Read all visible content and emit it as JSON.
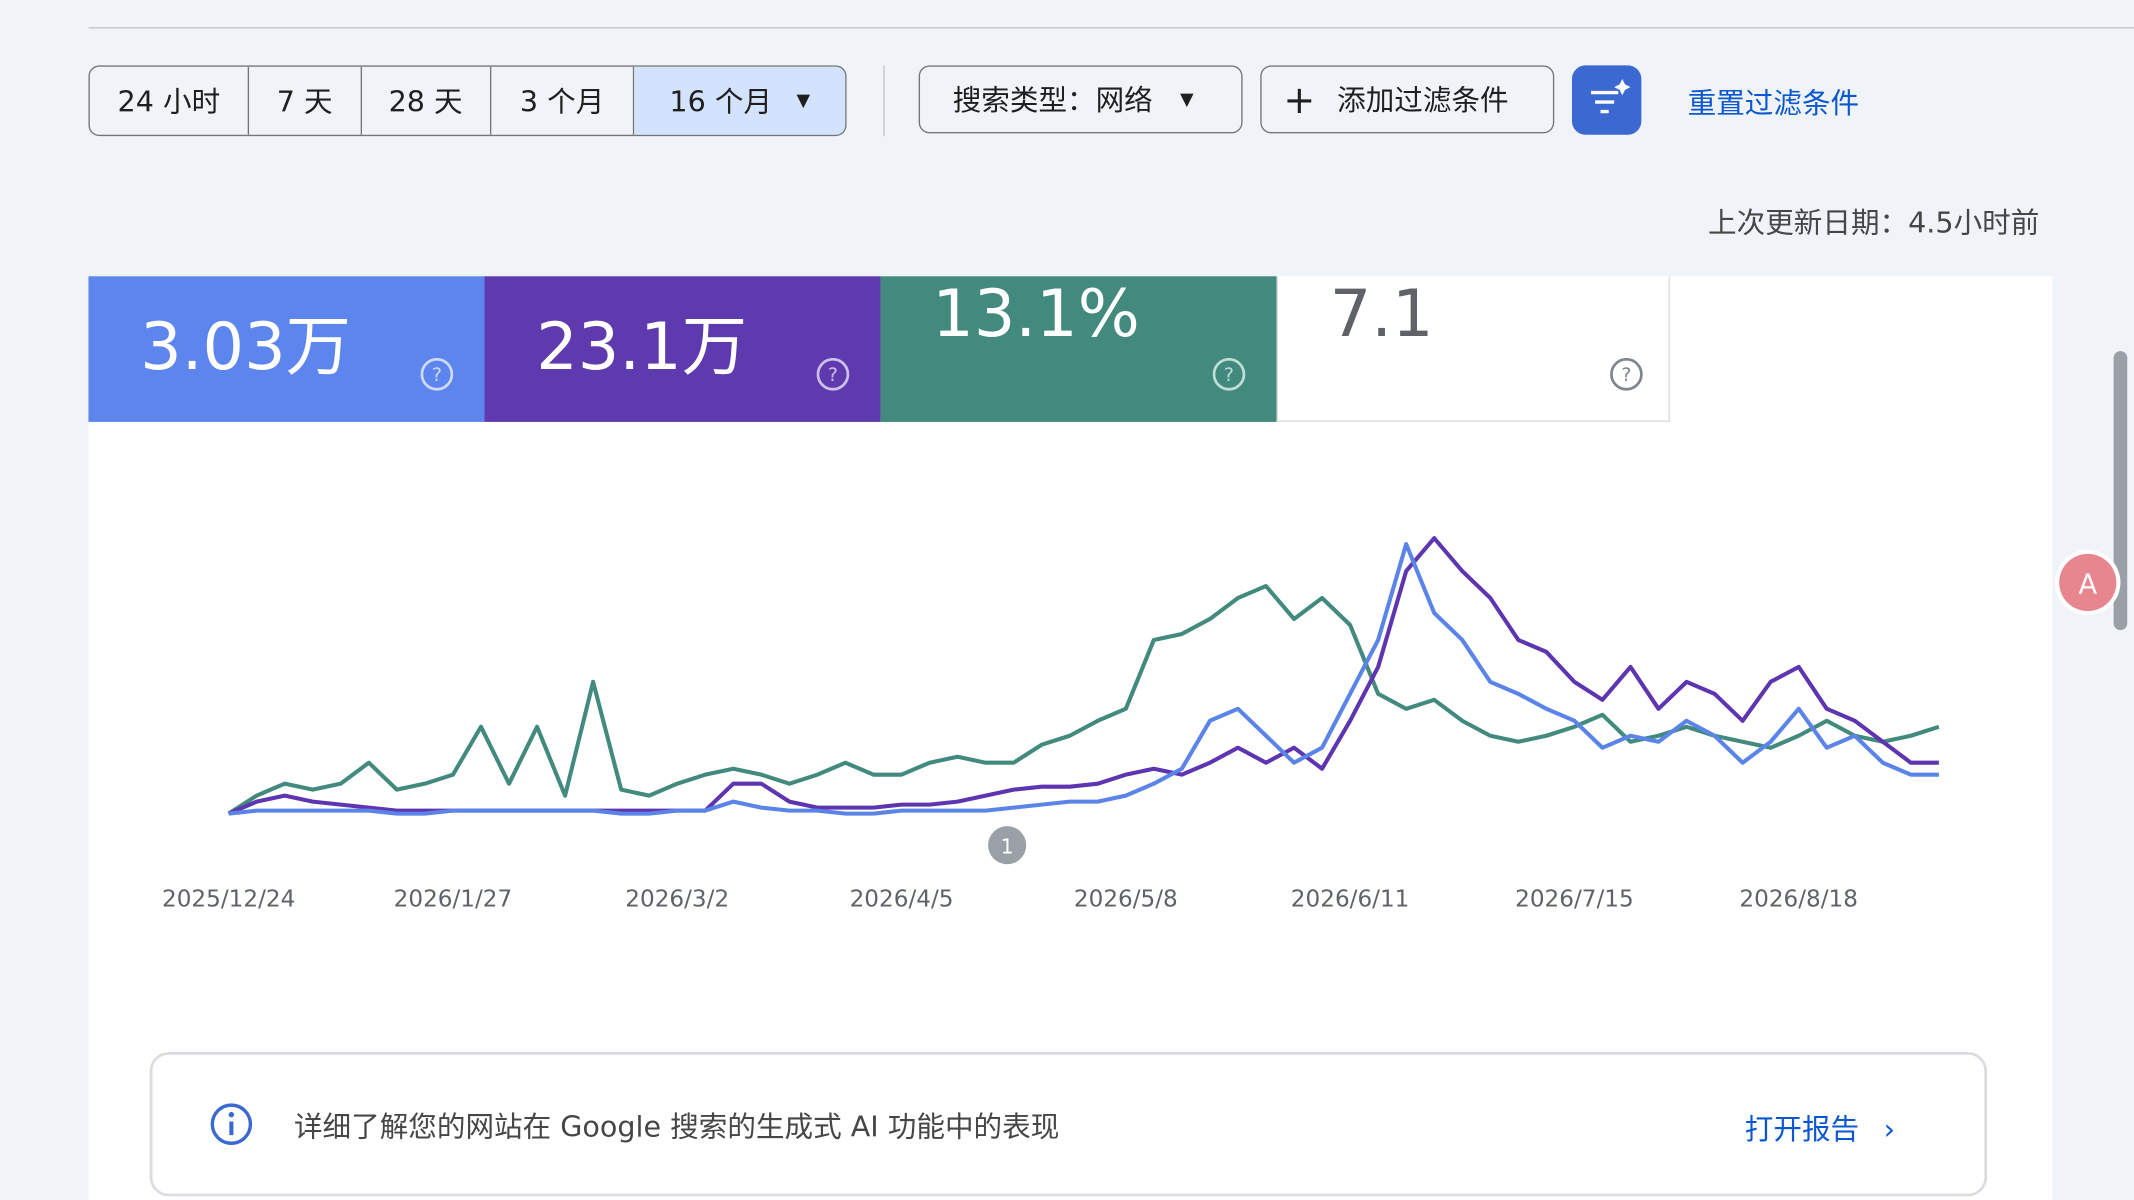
{
  "toolbar": {
    "ranges": [
      "24 小时",
      "7 天",
      "28 天",
      "3 个月",
      "16 个月"
    ],
    "search_type": "搜索类型：网络",
    "add_filter": "添加过滤条件",
    "reset": "重置过滤条件",
    "last_updated": "上次更新日期：4.5小时前"
  },
  "metrics": [
    "3.03万",
    "23.1万",
    "13.1%",
    "7.1"
  ],
  "chart_data": {
    "type": "line",
    "categories": [
      "2025/12/24",
      null,
      null,
      null,
      null,
      null,
      null,
      null,
      "2026/1/27",
      null,
      null,
      null,
      null,
      null,
      null,
      null,
      "2026/3/2",
      null,
      null,
      null,
      null,
      null,
      null,
      null,
      "2026/4/5",
      null,
      null,
      null,
      null,
      null,
      null,
      null,
      "2026/5/8",
      null,
      null,
      null,
      null,
      null,
      null,
      null,
      "2026/6/11",
      null,
      null,
      null,
      null,
      null,
      null,
      null,
      "2026/7/15",
      null,
      null,
      null,
      null,
      null,
      null,
      null,
      "2026/8/18",
      null,
      null,
      null,
      null,
      null
    ],
    "ylim": [
      0,
      100
    ],
    "series": [
      {
        "color": "#428a7d",
        "values": [
          1,
          7,
          11,
          9,
          11,
          18,
          9,
          11,
          14,
          30,
          11,
          30,
          7,
          45,
          9,
          7,
          11,
          14,
          16,
          14,
          11,
          14,
          18,
          14,
          14,
          18,
          20,
          18,
          18,
          24,
          27,
          32,
          36,
          59,
          61,
          66,
          73,
          77,
          66,
          73,
          64,
          41,
          36,
          39,
          32,
          27,
          25,
          27,
          30,
          34,
          25,
          27,
          30,
          27,
          25,
          23,
          27,
          32,
          27,
          25,
          27,
          30
        ]
      },
      {
        "color": "#5e35b1",
        "values": [
          1,
          5,
          7,
          5,
          4,
          3,
          2,
          2,
          2,
          2,
          2,
          2,
          2,
          2,
          2,
          2,
          2,
          2,
          11,
          11,
          5,
          3,
          3,
          3,
          4,
          4,
          5,
          7,
          9,
          10,
          10,
          11,
          14,
          16,
          14,
          18,
          23,
          18,
          23,
          16,
          32,
          50,
          82,
          93,
          82,
          73,
          59,
          55,
          45,
          39,
          50,
          36,
          45,
          41,
          32,
          45,
          50,
          36,
          32,
          25,
          18,
          18
        ]
      },
      {
        "color": "#5b84e8",
        "values": [
          1,
          2,
          2,
          2,
          2,
          2,
          1,
          1,
          2,
          2,
          2,
          2,
          2,
          2,
          1,
          1,
          2,
          2,
          5,
          3,
          2,
          2,
          1,
          1,
          2,
          2,
          2,
          2,
          3,
          4,
          5,
          5,
          7,
          11,
          16,
          32,
          36,
          27,
          18,
          23,
          41,
          59,
          91,
          68,
          59,
          45,
          41,
          36,
          32,
          23,
          27,
          25,
          32,
          27,
          18,
          25,
          36,
          23,
          27,
          18,
          14,
          14
        ]
      }
    ],
    "annotation": "1"
  },
  "banner": {
    "text": "详细了解您的网站在 Google 搜索的生成式 AI 功能中的表现",
    "link": "打开报告"
  }
}
